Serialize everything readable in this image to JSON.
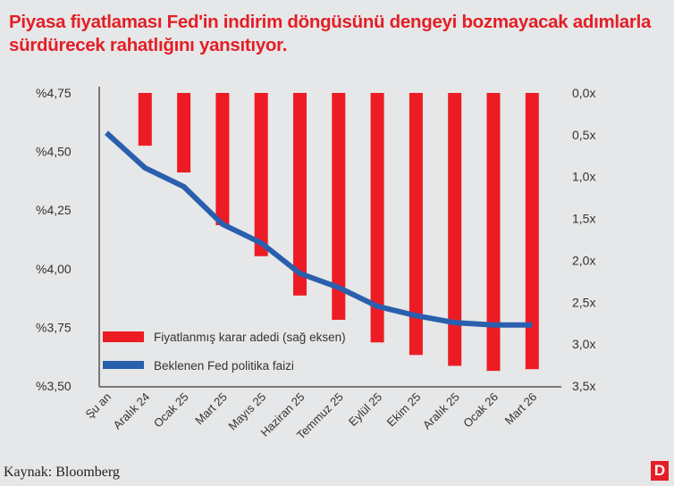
{
  "title": "Piyasa fiyatlaması Fed'in indirim döngüsünü dengeyi bozmayacak adımlarla sürdürecek rahatlığını yansıtıyor.",
  "source": "Kaynak: Bloomberg",
  "logo": "D",
  "chart_data": {
    "type": "bar+line",
    "categories": [
      "Şu an",
      "Aralık 24",
      "Ocak 25",
      "Mart 25",
      "Mayıs 25",
      "Haziran 25",
      "Temmuz 25",
      "Eylül 25",
      "Ekim 25",
      "Aralık 25",
      "Ocak 26",
      "Mart 26"
    ],
    "series": [
      {
        "name": "Fiyatlanmış karar adedi (sağ eksen)",
        "type": "bar",
        "axis": "right",
        "color": "#ed1c24",
        "values": [
          null,
          0.63,
          0.95,
          1.58,
          1.95,
          2.42,
          2.71,
          2.98,
          3.13,
          3.26,
          3.32,
          3.3
        ]
      },
      {
        "name": "Beklenen Fed politika faizi",
        "type": "line",
        "axis": "left",
        "color": "#2a5fae",
        "values": [
          4.58,
          4.43,
          4.35,
          4.19,
          4.11,
          3.98,
          3.92,
          3.84,
          3.8,
          3.77,
          3.76,
          3.76
        ]
      }
    ],
    "left_axis": {
      "range": [
        3.5,
        4.75
      ],
      "ticks": [
        "%4,75",
        "%4,50",
        "%4,25",
        "%4,00",
        "%3,75",
        "%3,50"
      ]
    },
    "right_axis": {
      "range": [
        0,
        3.5
      ],
      "inverted": true,
      "ticks": [
        "0,0x",
        "0,5x",
        "1,0x",
        "1,5x",
        "2,0x",
        "2,5x",
        "3,0x",
        "3,5x"
      ]
    },
    "legend_placement": "bottom-left",
    "grid": false
  }
}
